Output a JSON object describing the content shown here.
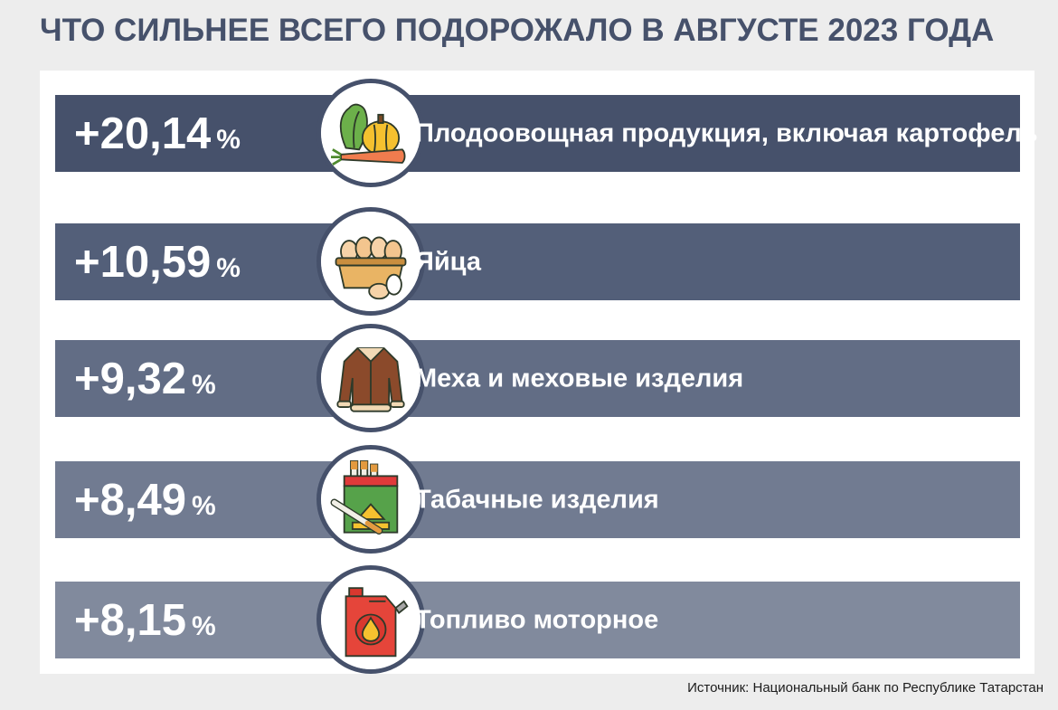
{
  "title": "ЧТО СИЛЬНЕЕ ВСЕГО ПОДОРОЖАЛО В АВГУСТЕ 2023 ГОДА",
  "source": "Источник: Национальный банк по Республике Татарстан",
  "chart_data": {
    "type": "bar",
    "unit": "%",
    "categories": [
      "Плодоовощная продукция, включая картофель",
      "Яйца",
      "Меха и меховые изделия",
      "Табачные изделия",
      "Топливо моторное"
    ],
    "values": [
      20.14,
      10.59,
      9.32,
      8.49,
      8.15
    ],
    "value_labels": [
      "+20,14",
      "+10,59",
      "+9,32",
      "+8,49",
      "+8,15"
    ],
    "row_colors": [
      "#46516b",
      "#535f79",
      "#626d85",
      "#717b91",
      "#818a9d"
    ],
    "icons": [
      "vegetables-icon",
      "eggs-basket-icon",
      "fur-coat-icon",
      "cigarettes-icon",
      "fuel-canister-icon"
    ]
  }
}
